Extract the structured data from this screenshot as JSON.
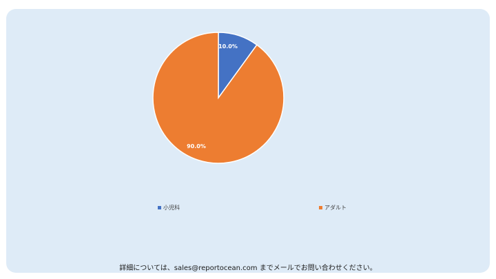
{
  "chart_data": {
    "type": "pie",
    "categories": [
      "小児科",
      "アダルト"
    ],
    "values": [
      10.0,
      90.0
    ],
    "data_labels": [
      "10.0%",
      "90.0%"
    ],
    "colors": [
      "#4472c4",
      "#ed7d31"
    ],
    "legend_position": "bottom",
    "title": ""
  },
  "footer": {
    "text": "詳細については、sales@reportocean.com までメールでお問い合わせください。"
  }
}
